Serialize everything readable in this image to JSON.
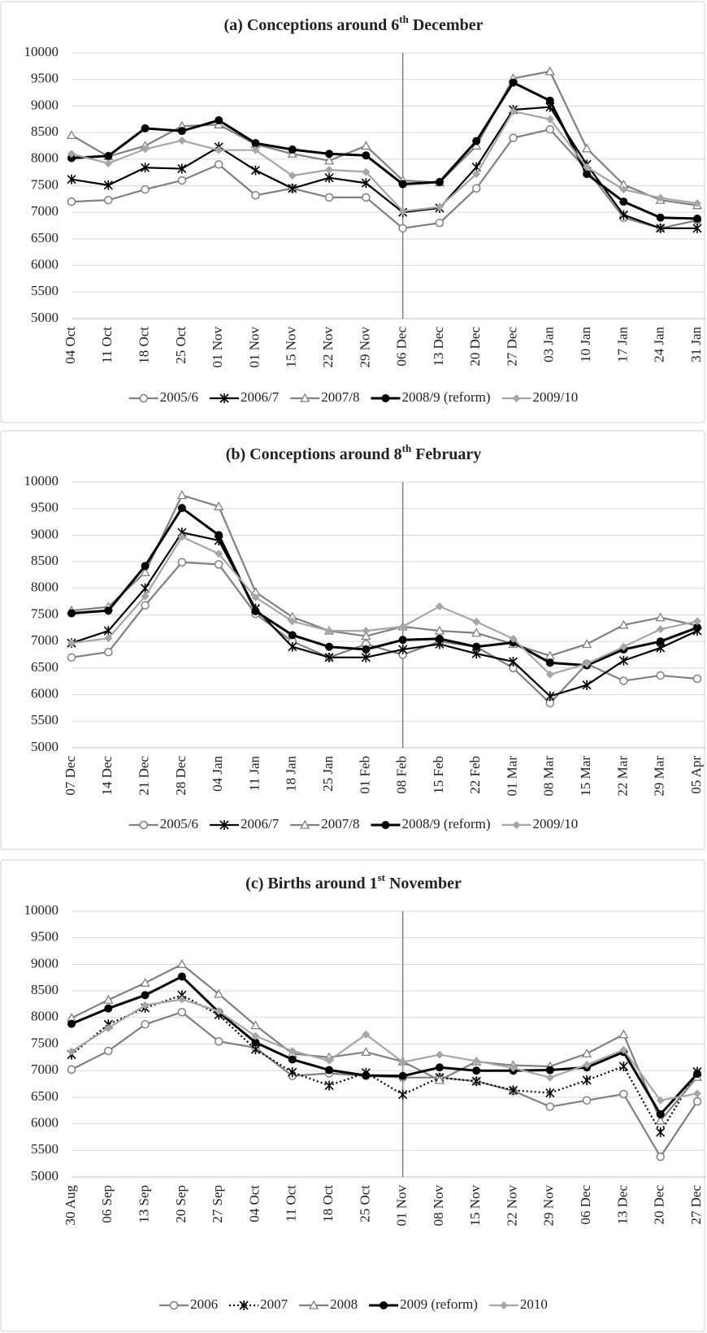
{
  "chart_data": [
    {
      "type": "line",
      "title": "(a) Conceptions around 6",
      "title_superscript": "th",
      "title_rest": " December",
      "categories": [
        "04 Oct",
        "11 Oct",
        "18 Oct",
        "25 Oct",
        "01 Nov",
        "01 Nov",
        "15 Nov",
        "22 Nov",
        "29 Nov",
        "06 Dec",
        "13 Dec",
        "20 Dec",
        "27 Dec",
        "03 Jan",
        "10 Jan",
        "17 Jan",
        "24 Jan",
        "31 Jan"
      ],
      "reference_line": "06 Dec",
      "ylim": [
        5000,
        10000
      ],
      "yticks": [
        5000,
        5500,
        6000,
        6500,
        7000,
        7500,
        8000,
        8500,
        9000,
        9500,
        10000
      ],
      "grid": true,
      "series": [
        {
          "name": "2005/6",
          "color": "#808080",
          "marker": "circle-open",
          "values": [
            7200,
            7230,
            7430,
            7600,
            7900,
            7320,
            7450,
            7280,
            7280,
            6700,
            6800,
            7450,
            8400,
            8560,
            7800,
            6900,
            6700,
            6850
          ]
        },
        {
          "name": "2006/7",
          "color": "#000000",
          "marker": "asterisk",
          "values": [
            7620,
            7510,
            7840,
            7820,
            8230,
            7790,
            7450,
            7650,
            7550,
            7000,
            7080,
            7850,
            8930,
            8980,
            7900,
            6950,
            6700,
            6700
          ]
        },
        {
          "name": "2007/8",
          "color": "#808080",
          "marker": "triangle-open",
          "values": [
            8450,
            8050,
            8250,
            8620,
            8650,
            8280,
            8100,
            7970,
            8250,
            7600,
            7560,
            8250,
            9520,
            9650,
            8200,
            7520,
            7230,
            7130
          ]
        },
        {
          "name": "2008/9 (reform)",
          "color": "#000000",
          "marker": "circle",
          "width": 3,
          "values": [
            8020,
            8060,
            8580,
            8530,
            8730,
            8300,
            8180,
            8100,
            8070,
            7530,
            7570,
            8340,
            9440,
            9100,
            7720,
            7200,
            6900,
            6880
          ]
        },
        {
          "name": "2009/10",
          "color": "#a6a6a6",
          "marker": "diamond",
          "values": [
            8100,
            7920,
            8190,
            8350,
            8170,
            8170,
            7690,
            7800,
            7760,
            7020,
            7100,
            7720,
            8900,
            8750,
            7850,
            7430,
            7270,
            7170
          ]
        }
      ]
    },
    {
      "type": "line",
      "title": "(b) Conceptions around 8",
      "title_superscript": "th",
      "title_rest": " February",
      "categories": [
        "07 Dec",
        "14 Dec",
        "21 Dec",
        "28 Dec",
        "04 Jan",
        "11 Jan",
        "18 Jan",
        "25 Jan",
        "01 Feb",
        "08 Feb",
        "15 Feb",
        "22 Feb",
        "01 Mar",
        "08 Mar",
        "15 Mar",
        "22 Mar",
        "29 Mar",
        "05 Apr"
      ],
      "reference_line": "08 Feb",
      "ylim": [
        5000,
        10000
      ],
      "yticks": [
        5000,
        5500,
        6000,
        6500,
        7000,
        7500,
        8000,
        8500,
        9000,
        9500,
        10000
      ],
      "grid": true,
      "series": [
        {
          "name": "2005/6",
          "color": "#808080",
          "marker": "circle-open",
          "values": [
            6700,
            6800,
            7680,
            8490,
            8450,
            7520,
            7000,
            6700,
            6950,
            6750,
            7000,
            6900,
            6500,
            5840,
            6580,
            6260,
            6360,
            6300
          ]
        },
        {
          "name": "2006/7",
          "color": "#000000",
          "marker": "asterisk",
          "values": [
            6970,
            7200,
            8000,
            9050,
            8900,
            7620,
            6900,
            6700,
            6700,
            6850,
            6950,
            6770,
            6620,
            5970,
            6180,
            6640,
            6880,
            7200
          ]
        },
        {
          "name": "2007/8",
          "color": "#808080",
          "marker": "triangle-open",
          "values": [
            7580,
            7650,
            8300,
            9750,
            9540,
            7930,
            7460,
            7200,
            7100,
            7280,
            7200,
            7160,
            6950,
            6730,
            6950,
            7310,
            7450,
            7300
          ]
        },
        {
          "name": "2008/9 (reform)",
          "color": "#000000",
          "marker": "circle",
          "width": 3,
          "values": [
            7530,
            7580,
            8420,
            9510,
            9000,
            7570,
            7120,
            6900,
            6850,
            7030,
            7050,
            6900,
            6980,
            6600,
            6550,
            6850,
            7000,
            7260
          ]
        },
        {
          "name": "2009/10",
          "color": "#a6a6a6",
          "marker": "diamond",
          "values": [
            6970,
            7060,
            7850,
            8970,
            8650,
            7830,
            7380,
            7200,
            7200,
            7280,
            7660,
            7370,
            7050,
            6380,
            6580,
            6900,
            7230,
            7380
          ]
        }
      ]
    },
    {
      "type": "line",
      "title": "(c) Births around 1",
      "title_superscript": "st",
      "title_rest": " November",
      "categories": [
        "30 Aug",
        "06 Sep",
        "13 Sep",
        "20 Sep",
        "27 Sep",
        "04 Oct",
        "11 Oct",
        "18 Oct",
        "25 Oct",
        "01 Nov",
        "08 Nov",
        "15 Nov",
        "22 Nov",
        "29 Nov",
        "06 Dec",
        "13 Dec",
        "20 Dec",
        "27 Dec"
      ],
      "reference_line": "01 Nov",
      "ylim": [
        5000,
        10000
      ],
      "yticks": [
        5000,
        5500,
        6000,
        6500,
        7000,
        7500,
        8000,
        8500,
        9000,
        9500,
        10000
      ],
      "grid": true,
      "series": [
        {
          "name": "2006",
          "color": "#808080",
          "marker": "circle-open",
          "values": [
            7020,
            7370,
            7870,
            8100,
            7550,
            7430,
            6900,
            6950,
            6900,
            6870,
            6870,
            6800,
            6620,
            6320,
            6440,
            6560,
            5380,
            6420
          ]
        },
        {
          "name": "2007",
          "color": "#000000",
          "marker": "asterisk",
          "dash": "dotted",
          "values": [
            7300,
            7870,
            8180,
            8420,
            8050,
            7400,
            6970,
            6720,
            6960,
            6550,
            6870,
            6800,
            6630,
            6580,
            6820,
            7080,
            5840,
            6980
          ]
        },
        {
          "name": "2008",
          "color": "#808080",
          "marker": "triangle-open",
          "values": [
            7990,
            8330,
            8650,
            9000,
            8440,
            7850,
            7320,
            7250,
            7350,
            7170,
            6820,
            7170,
            7100,
            7080,
            7320,
            7680,
            6060,
            6880
          ]
        },
        {
          "name": "2009 (reform)",
          "color": "#000000",
          "marker": "circle",
          "width": 3,
          "values": [
            7880,
            8170,
            8420,
            8770,
            8100,
            7530,
            7210,
            7010,
            6910,
            6900,
            7060,
            7000,
            7000,
            7010,
            7060,
            7350,
            6180,
            6940
          ]
        },
        {
          "name": "2010",
          "color": "#a6a6a6",
          "marker": "diamond",
          "values": [
            7360,
            7800,
            8230,
            8340,
            8120,
            7650,
            7370,
            7190,
            7680,
            7160,
            7300,
            7180,
            7050,
            6870,
            7110,
            7390,
            6440,
            6570
          ]
        }
      ]
    }
  ]
}
